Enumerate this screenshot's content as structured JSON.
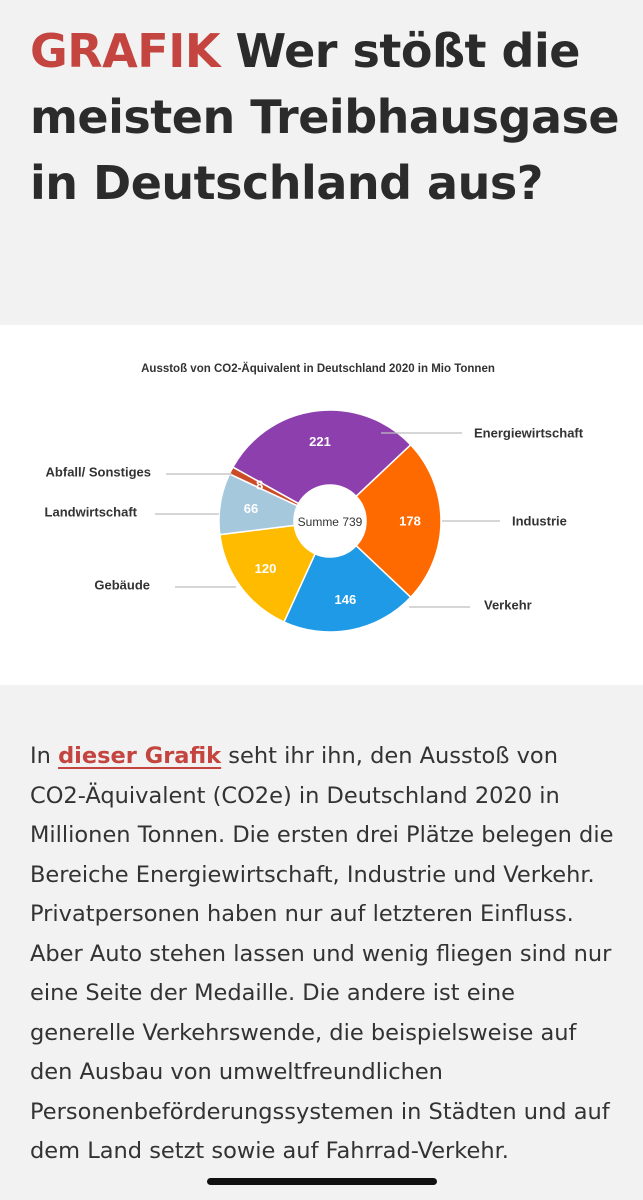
{
  "headline": {
    "kicker": "GRAFIK",
    "title": "Wer stößt die meisten Treibhausgase in Deutschland aus?"
  },
  "chart_data": {
    "type": "pie",
    "title": "Ausstoß von CO2-Äquivalent in Deutschland 2020 in Mio Tonnen",
    "center_label": "Summe 739",
    "series": [
      {
        "name": "Energiewirtschaft",
        "value": 221,
        "color": "#8e3fae"
      },
      {
        "name": "Industrie",
        "value": 178,
        "color": "#ff6a00"
      },
      {
        "name": "Verkehr",
        "value": 146,
        "color": "#1f9ae6"
      },
      {
        "name": "Gebäude",
        "value": 120,
        "color": "#ffbb00"
      },
      {
        "name": "Landwirtschaft",
        "value": 66,
        "color": "#a5c8dc"
      },
      {
        "name": "Abfall/ Sonstiges",
        "value": 8,
        "color": "#cc4b27"
      }
    ]
  },
  "article": {
    "intro": "In ",
    "link_text": "dieser Grafik",
    "body": " seht ihr ihn, den Ausstoß von CO2-Äquivalent (CO2e) in Deutschland 2020 in Millionen Tonnen. Die ersten drei Plätze belegen die Bereiche Energiewirtschaft, Industrie und Verkehr. Privatpersonen haben nur auf letzteren Einfluss. Aber Auto stehen lassen und wenig fliegen sind nur eine Seite der Medaille. Die andere ist eine generelle Verkehrswende, die beispielsweise auf den Ausbau von umweltfreundlichen Personenbeförderungssystemen in Städten und auf dem Land setzt sowie auf Fahrrad-Verkehr."
  }
}
